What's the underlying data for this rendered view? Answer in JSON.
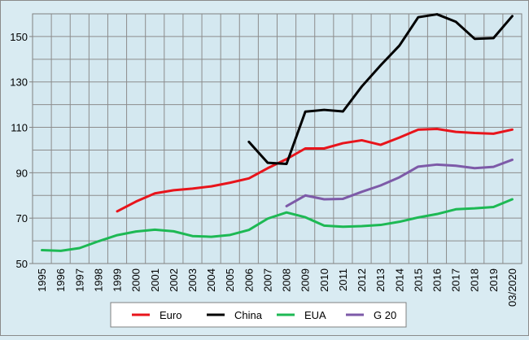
{
  "chart_data": {
    "type": "line",
    "x": [
      "1995",
      "1996",
      "1997",
      "1998",
      "1999",
      "2000",
      "2001",
      "2002",
      "2003",
      "2004",
      "2005",
      "2006",
      "2007",
      "2008",
      "2009",
      "2010",
      "2011",
      "2012",
      "2013",
      "2014",
      "2015",
      "2016",
      "2017",
      "2018",
      "2019",
      "03/2020"
    ],
    "ylim": [
      50,
      160
    ],
    "yticks": [
      50,
      70,
      90,
      110,
      130,
      150
    ],
    "grid": true,
    "legend_position": "bottom",
    "series": [
      {
        "name": "Euro",
        "color": "#e8141b",
        "values": [
          null,
          null,
          null,
          null,
          73,
          77.3,
          80.9,
          82.3,
          83,
          84,
          85.6,
          87.5,
          92,
          96,
          100.7,
          100.7,
          103,
          104.3,
          102.3,
          105.5,
          109,
          109.3,
          108,
          107.5,
          107.2,
          109
        ]
      },
      {
        "name": "China",
        "color": "#000000",
        "values": [
          null,
          null,
          null,
          null,
          null,
          null,
          null,
          null,
          null,
          null,
          null,
          103.6,
          94.4,
          93.9,
          116.9,
          117.7,
          117,
          128,
          137.3,
          146,
          158.5,
          159.8,
          156.5,
          149,
          149.3,
          159
        ]
      },
      {
        "name": "EUA",
        "color": "#1db954",
        "values": [
          55.9,
          55.6,
          56.8,
          59.8,
          62.5,
          64.1,
          64.9,
          64.2,
          62.1,
          61.8,
          62.6,
          64.8,
          69.8,
          72.5,
          70.4,
          66.7,
          66.2,
          66.5,
          67,
          68.4,
          70.3,
          71.8,
          73.9,
          74.3,
          74.9,
          78.3
        ]
      },
      {
        "name": "G 20",
        "color": "#7d5aa8",
        "values": [
          null,
          null,
          null,
          null,
          null,
          null,
          null,
          null,
          null,
          null,
          null,
          null,
          null,
          75.3,
          80,
          78.3,
          78.5,
          81.6,
          84.4,
          88,
          92.7,
          93.6,
          93.1,
          92,
          92.6,
          95.7
        ]
      }
    ]
  }
}
